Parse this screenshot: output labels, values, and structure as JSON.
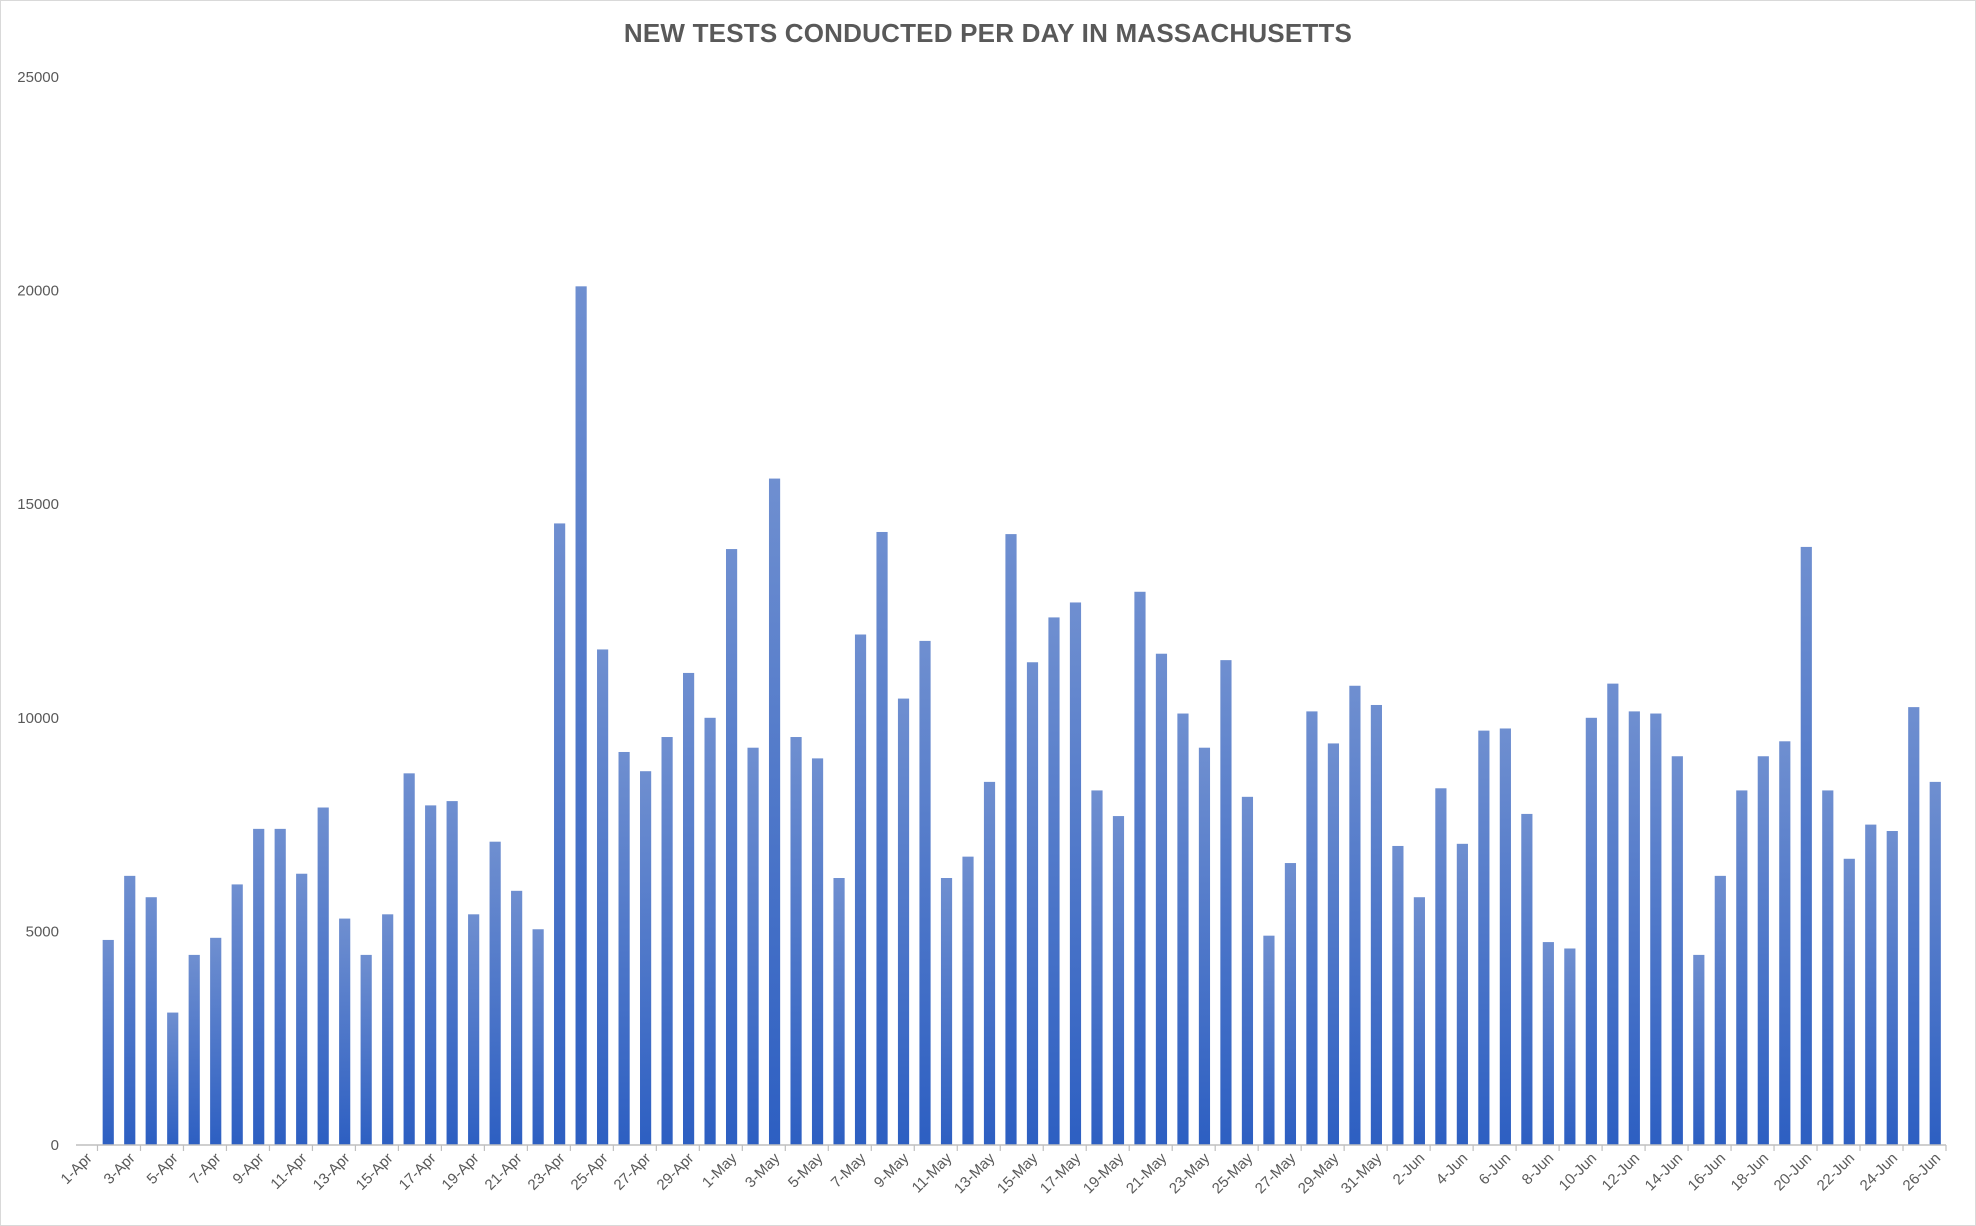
{
  "chart_data": {
    "type": "bar",
    "title": "NEW TESTS CONDUCTED PER DAY IN MASSACHUSETTS",
    "xlabel": "",
    "ylabel": "",
    "ylim": [
      0,
      25000
    ],
    "yticks": [
      0,
      5000,
      10000,
      15000,
      20000,
      25000
    ],
    "grid": false,
    "legend": "none",
    "bar_color_top": "#6f8fd0",
    "bar_color_bottom": "#2d5fc2",
    "categories": [
      "1-Apr",
      "2-Apr",
      "3-Apr",
      "4-Apr",
      "5-Apr",
      "6-Apr",
      "7-Apr",
      "8-Apr",
      "9-Apr",
      "10-Apr",
      "11-Apr",
      "12-Apr",
      "13-Apr",
      "14-Apr",
      "15-Apr",
      "16-Apr",
      "17-Apr",
      "18-Apr",
      "19-Apr",
      "20-Apr",
      "21-Apr",
      "22-Apr",
      "23-Apr",
      "24-Apr",
      "25-Apr",
      "26-Apr",
      "27-Apr",
      "28-Apr",
      "29-Apr",
      "30-Apr",
      "1-May",
      "2-May",
      "3-May",
      "4-May",
      "5-May",
      "6-May",
      "7-May",
      "8-May",
      "9-May",
      "10-May",
      "11-May",
      "12-May",
      "13-May",
      "14-May",
      "15-May",
      "16-May",
      "17-May",
      "18-May",
      "19-May",
      "20-May",
      "21-May",
      "22-May",
      "23-May",
      "24-May",
      "25-May",
      "26-May",
      "27-May",
      "28-May",
      "29-May",
      "30-May",
      "31-May",
      "1-Jun",
      "2-Jun",
      "3-Jun",
      "4-Jun",
      "5-Jun",
      "6-Jun",
      "7-Jun",
      "8-Jun",
      "9-Jun",
      "10-Jun",
      "11-Jun",
      "12-Jun",
      "13-Jun",
      "14-Jun",
      "15-Jun",
      "16-Jun",
      "17-Jun",
      "18-Jun",
      "19-Jun",
      "20-Jun",
      "21-Jun",
      "22-Jun",
      "23-Jun",
      "24-Jun",
      "25-Jun",
      "26-Jun"
    ],
    "tick_labels": [
      "1-Apr",
      "3-Apr",
      "5-Apr",
      "7-Apr",
      "9-Apr",
      "11-Apr",
      "13-Apr",
      "15-Apr",
      "17-Apr",
      "19-Apr",
      "21-Apr",
      "23-Apr",
      "25-Apr",
      "27-Apr",
      "29-Apr",
      "1-May",
      "3-May",
      "5-May",
      "7-May",
      "9-May",
      "11-May",
      "13-May",
      "15-May",
      "17-May",
      "19-May",
      "21-May",
      "23-May",
      "25-May",
      "27-May",
      "29-May",
      "31-May",
      "2-Jun",
      "4-Jun",
      "6-Jun",
      "8-Jun",
      "10-Jun",
      "12-Jun",
      "14-Jun",
      "16-Jun",
      "18-Jun",
      "20-Jun",
      "22-Jun",
      "24-Jun",
      "26-Jun"
    ],
    "values": [
      0,
      4800,
      6300,
      5800,
      3100,
      4450,
      4850,
      6100,
      7400,
      7400,
      6350,
      7900,
      5300,
      4450,
      5400,
      8700,
      7950,
      8050,
      5400,
      7100,
      5950,
      5050,
      14550,
      20100,
      11600,
      9200,
      8750,
      9550,
      11050,
      10000,
      13950,
      9300,
      15600,
      9550,
      9050,
      6250,
      11950,
      14350,
      10450,
      11800,
      6250,
      6750,
      8500,
      14300,
      11300,
      12350,
      12700,
      8300,
      7700,
      12950,
      11500,
      10100,
      9300,
      11350,
      8150,
      4900,
      6600,
      10150,
      9400,
      10750,
      10300,
      7000,
      5800,
      8350,
      7050,
      9700,
      9750,
      7750,
      4750,
      4600,
      10000,
      10800,
      10150,
      10100,
      9100,
      4450,
      6300,
      8300,
      9100,
      9450,
      14000,
      8300,
      6700,
      7500,
      7350,
      10250,
      8500
    ]
  }
}
